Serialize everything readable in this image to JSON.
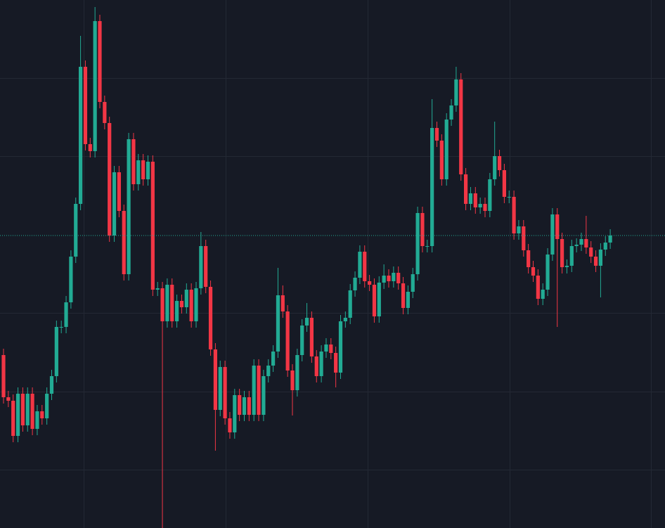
{
  "chart_data": {
    "type": "candlestick",
    "open": [
      246,
      186,
      181,
      131,
      191,
      146,
      191,
      141,
      166,
      156,
      191,
      216,
      286,
      286,
      321,
      386,
      461,
      656,
      546,
      536,
      721,
      606,
      576,
      416,
      506,
      451,
      361,
      553,
      489,
      523,
      496,
      521,
      339,
      341,
      294,
      346,
      294,
      323,
      314,
      339,
      294,
      341,
      401,
      343,
      254,
      168,
      229,
      156,
      136,
      189,
      161,
      186,
      161,
      231,
      161,
      216,
      231,
      251,
      331,
      308,
      224,
      196,
      246,
      288,
      299,
      244,
      216,
      251,
      261,
      249,
      221,
      294,
      299,
      338,
      356,
      393,
      351,
      346,
      301,
      349,
      359,
      351,
      363,
      348,
      313,
      336,
      361,
      448,
      401,
      401,
      569,
      551,
      496,
      581,
      601,
      638,
      503,
      461,
      476,
      456,
      461,
      451,
      496,
      529,
      509,
      471,
      471,
      419,
      429,
      395,
      371,
      359,
      326,
      339,
      389,
      446,
      411,
      371,
      373,
      401,
      403,
      411,
      399,
      386,
      373,
      396,
      406
    ],
    "high": [
      255,
      195,
      190,
      200,
      200,
      200,
      200,
      175,
      175,
      200,
      225,
      295,
      295,
      330,
      395,
      470,
      700,
      665,
      555,
      741,
      730,
      615,
      585,
      515,
      515,
      460,
      562,
      562,
      532,
      532,
      530,
      530,
      350,
      350,
      355,
      355,
      332,
      332,
      348,
      348,
      350,
      421,
      410,
      352,
      263,
      238,
      238,
      165,
      198,
      198,
      195,
      195,
      240,
      240,
      225,
      240,
      260,
      370,
      345,
      317,
      233,
      255,
      297,
      320,
      308,
      253,
      260,
      270,
      270,
      258,
      303,
      308,
      347,
      365,
      402,
      402,
      360,
      355,
      358,
      375,
      368,
      372,
      372,
      357,
      345,
      370,
      457,
      457,
      410,
      610,
      578,
      560,
      590,
      610,
      656,
      647,
      512,
      485,
      485,
      470,
      470,
      505,
      578,
      538,
      518,
      480,
      480,
      438,
      438,
      404,
      380,
      368,
      348,
      398,
      455,
      455,
      420,
      382,
      410,
      412,
      420,
      444,
      408,
      395,
      405,
      415,
      425
    ],
    "low": [
      177,
      172,
      122,
      122,
      137,
      137,
      132,
      132,
      147,
      147,
      182,
      207,
      277,
      277,
      312,
      377,
      452,
      537,
      527,
      527,
      597,
      567,
      407,
      407,
      442,
      352,
      352,
      480,
      480,
      487,
      487,
      330,
      330,
      0,
      285,
      285,
      285,
      305,
      305,
      285,
      285,
      332,
      334,
      245,
      110,
      159,
      147,
      127,
      127,
      152,
      152,
      152,
      152,
      152,
      152,
      207,
      222,
      242,
      299,
      215,
      160,
      187,
      237,
      279,
      235,
      207,
      207,
      242,
      240,
      200,
      212,
      285,
      290,
      329,
      347,
      342,
      337,
      292,
      292,
      340,
      342,
      342,
      339,
      304,
      304,
      327,
      352,
      392,
      392,
      392,
      542,
      487,
      487,
      572,
      592,
      494,
      452,
      452,
      447,
      447,
      442,
      442,
      487,
      500,
      462,
      462,
      410,
      410,
      386,
      362,
      350,
      317,
      317,
      330,
      380,
      286,
      362,
      362,
      364,
      392,
      394,
      390,
      377,
      364,
      328,
      387,
      397
    ],
    "close": [
      186,
      181,
      131,
      191,
      146,
      191,
      141,
      166,
      156,
      191,
      216,
      286,
      286,
      321,
      386,
      461,
      656,
      546,
      536,
      721,
      606,
      576,
      416,
      506,
      451,
      361,
      553,
      489,
      523,
      496,
      521,
      339,
      341,
      294,
      346,
      294,
      323,
      314,
      339,
      294,
      341,
      401,
      343,
      254,
      168,
      229,
      156,
      136,
      189,
      161,
      186,
      161,
      231,
      161,
      216,
      231,
      251,
      331,
      308,
      224,
      196,
      246,
      288,
      299,
      244,
      216,
      251,
      261,
      249,
      221,
      294,
      299,
      338,
      356,
      393,
      351,
      346,
      301,
      349,
      359,
      351,
      363,
      348,
      313,
      336,
      361,
      448,
      401,
      401,
      569,
      551,
      496,
      581,
      601,
      638,
      503,
      461,
      476,
      456,
      461,
      451,
      496,
      529,
      509,
      471,
      471,
      419,
      429,
      395,
      371,
      359,
      326,
      339,
      389,
      446,
      411,
      371,
      373,
      401,
      403,
      411,
      399,
      386,
      373,
      396,
      406,
      416
    ],
    "up_color": "#22ab94",
    "down_color": "#f23645",
    "ylim": [
      0,
      751
    ],
    "yticks": [
      83,
      194,
      306,
      529,
      640
    ],
    "grid": true,
    "last_price_line": true
  }
}
